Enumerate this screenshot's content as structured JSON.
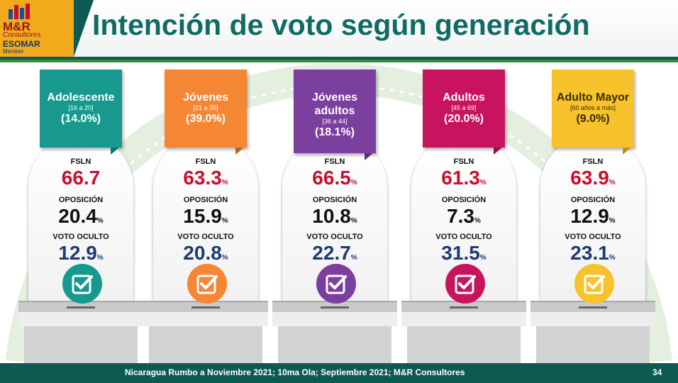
{
  "header": {
    "title": "Intención de voto según generación",
    "logo": {
      "name": "M&R",
      "subtitle": "Consultores",
      "association": "ESOMAR",
      "member_label": "Member"
    }
  },
  "chart_data": {
    "type": "table",
    "title": "Intención de voto según generación",
    "metrics": [
      "FSLN",
      "OPOSICIÓN",
      "VOTO OCULTO"
    ],
    "groups": [
      {
        "name": "Adolescente",
        "range": "[16 a 20]",
        "share": "(14.0%)",
        "color": "#17998f",
        "fsln": "66.7",
        "fsln_pct": "",
        "oposicion": "20.4",
        "oposicion_pct": "%",
        "voto_oculto": "12.9",
        "voto_oculto_pct": "%"
      },
      {
        "name": "Jóvenes",
        "range": "[21 a 35]",
        "share": "(39.0%)",
        "color": "#f58634",
        "fsln": "63.3",
        "fsln_pct": "%",
        "oposicion": "15.9",
        "oposicion_pct": "%",
        "voto_oculto": "20.8",
        "voto_oculto_pct": "%"
      },
      {
        "name": "Jóvenes adultos",
        "range": "[36 a 44]",
        "share": "(18.1%)",
        "color": "#7b3f9e",
        "fsln": "66.5",
        "fsln_pct": "%",
        "oposicion": "10.8",
        "oposicion_pct": "%",
        "voto_oculto": "22.7",
        "voto_oculto_pct": "%"
      },
      {
        "name": "Adultos",
        "range": "[45 a 69]",
        "share": "(20.0%)",
        "color": "#c8145f",
        "fsln": "61.3",
        "fsln_pct": "%",
        "oposicion": "7.3",
        "oposicion_pct": "%",
        "voto_oculto": "31.5",
        "voto_oculto_pct": "%"
      },
      {
        "name": "Adulto Mayor",
        "range": "[60 años a más]",
        "share": "(9.0%)",
        "color": "#f7c22b",
        "fsln": "63.9",
        "fsln_pct": "%",
        "oposicion": "12.9",
        "oposicion_pct": "%",
        "voto_oculto": "23.1",
        "voto_oculto_pct": "%"
      }
    ]
  },
  "footer": {
    "source": "Nicaragua Rumbo a Noviembre 2021; 10ma Ola; Septiembre 2021; M&R Consultores",
    "page": "34"
  },
  "colors": {
    "header": "#0d5a52",
    "title": "#0f6b64",
    "fsln": "#c8102e",
    "oposicion": "#111111",
    "voto_oculto": "#1f3a6e"
  }
}
